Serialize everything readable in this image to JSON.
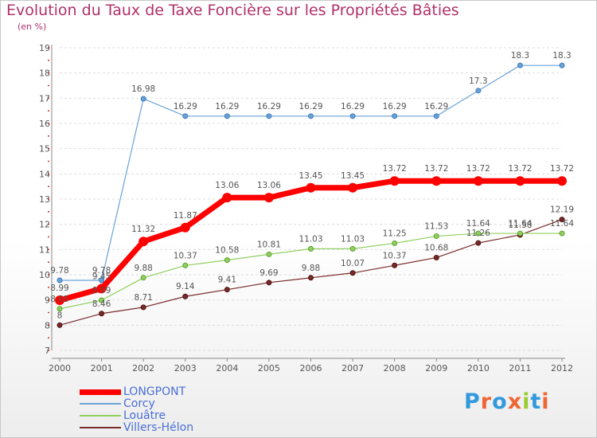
{
  "chart_data": {
    "type": "line",
    "title": "Evolution du Taux de Taxe Foncière sur les Propriétés Bâties",
    "unit_label": "(en %)",
    "xlabel": "",
    "ylabel": "",
    "x": [
      "2000",
      "2001",
      "2002",
      "2003",
      "2004",
      "2005",
      "2006",
      "2007",
      "2008",
      "2009",
      "2010",
      "2011",
      "2012"
    ],
    "ylim": [
      7,
      19
    ],
    "yticks": [
      "7",
      "8",
      "9",
      "10",
      "11",
      "12",
      "13",
      "14",
      "15",
      "16",
      "17",
      "18",
      "19"
    ],
    "series": [
      {
        "name": "LONGPONT",
        "color": "#ff0000",
        "width": 7,
        "marker": 6,
        "values": [
          8.99,
          9.45,
          11.32,
          11.87,
          13.06,
          13.06,
          13.45,
          13.45,
          13.72,
          13.72,
          13.72,
          13.72,
          13.72
        ],
        "labels": [
          "8.99",
          "9.45",
          "11.32",
          "11.87",
          "13.06",
          "13.06",
          "13.45",
          "13.45",
          "13.72",
          "13.72",
          "13.72",
          "13.72",
          "13.72"
        ]
      },
      {
        "name": "Corcy",
        "color": "#6aa3d8",
        "width": 1.2,
        "marker": 3,
        "values": [
          9.78,
          9.78,
          16.98,
          16.29,
          16.29,
          16.29,
          16.29,
          16.29,
          16.29,
          16.29,
          17.3,
          18.3,
          18.3
        ],
        "labels": [
          "9.78",
          "9.78",
          "16.98",
          "16.29",
          "16.29",
          "16.29",
          "16.29",
          "16.29",
          "16.29",
          "16.29",
          "17.3",
          "18.3",
          "18.3"
        ]
      },
      {
        "name": "Louâtre",
        "color": "#90d060",
        "width": 1.2,
        "marker": 3,
        "values": [
          8.65,
          8.99,
          9.88,
          10.37,
          10.58,
          10.81,
          11.03,
          11.03,
          11.25,
          11.53,
          11.64,
          11.64,
          11.64
        ],
        "labels": [
          "8.65",
          "8.99",
          "9.88",
          "10.37",
          "10.58",
          "10.81",
          "11.03",
          "11.03",
          "11.25",
          "11.53",
          "11.64",
          "11.64",
          "11.64"
        ]
      },
      {
        "name": "Villers-Hélon",
        "color": "#7a2a2a",
        "width": 1.2,
        "marker": 3,
        "values": [
          8,
          8.46,
          8.71,
          9.14,
          9.41,
          9.69,
          9.88,
          10.07,
          10.37,
          10.68,
          11.26,
          11.58,
          12.19
        ],
        "labels": [
          "8",
          "8.46",
          "8.71",
          "9.14",
          "9.41",
          "9.69",
          "9.88",
          "10.07",
          "10.37",
          "10.68",
          "11.26",
          "11.58",
          "12.19"
        ]
      }
    ],
    "legend": "bottom-left"
  },
  "logo": {
    "text": "Proxiti",
    "letters": [
      "P",
      "r",
      "o",
      "x",
      "i",
      "t",
      "i"
    ],
    "colors": [
      "#3399dd",
      "#ee6633",
      "#3399dd",
      "#ee6633",
      "#99cc33",
      "#3399dd",
      "#ee6633"
    ]
  },
  "colors": {
    "title": "#b0306a",
    "axis": "#888888",
    "grid": "#dddddd",
    "label": "#555555"
  }
}
